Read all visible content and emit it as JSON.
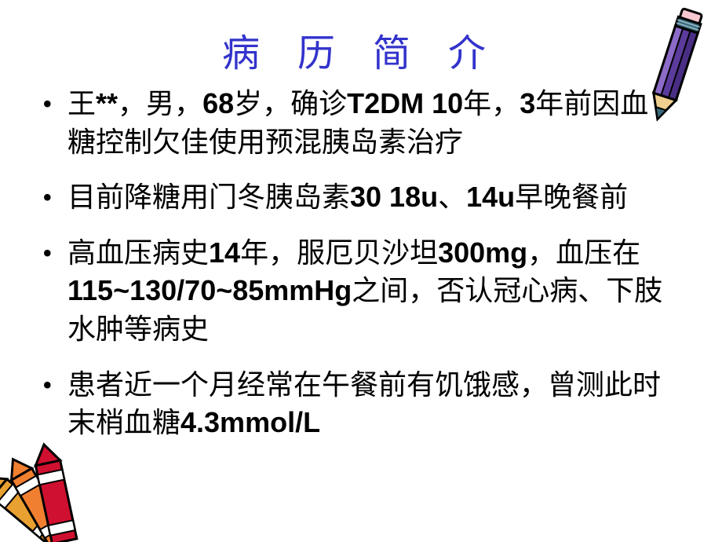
{
  "title": "病 历 简 介",
  "title_color": "#3333cc",
  "title_fontsize": 48,
  "body_fontsize": 36,
  "body_color": "#000000",
  "background_color": "#ffffff",
  "bullets": [
    {
      "segments": [
        {
          "text": "王",
          "bold": false
        },
        {
          "text": "**",
          "bold": true
        },
        {
          "text": "，男，",
          "bold": false
        },
        {
          "text": "68",
          "bold": true
        },
        {
          "text": "岁，确诊",
          "bold": false
        },
        {
          "text": "T2DM 10",
          "bold": true
        },
        {
          "text": "年，",
          "bold": false
        },
        {
          "text": "3",
          "bold": true
        },
        {
          "text": "年前因血糖控制欠佳使用预混胰岛素治疗",
          "bold": false
        }
      ]
    },
    {
      "segments": [
        {
          "text": "目前降糖用门冬胰岛素",
          "bold": false
        },
        {
          "text": "30 18u",
          "bold": true
        },
        {
          "text": "、",
          "bold": false
        },
        {
          "text": "14u",
          "bold": true
        },
        {
          "text": "早晚餐前",
          "bold": false
        }
      ]
    },
    {
      "segments": [
        {
          "text": "高血压病史",
          "bold": false
        },
        {
          "text": "14",
          "bold": true
        },
        {
          "text": "年，服厄贝沙坦",
          "bold": false
        },
        {
          "text": "300mg",
          "bold": true
        },
        {
          "text": "，血压在",
          "bold": false
        },
        {
          "text": "115~130/70~85mmHg",
          "bold": true
        },
        {
          "text": "之间，否认冠心病、下肢水肿等病史",
          "bold": false
        }
      ]
    },
    {
      "segments": [
        {
          "text": "患者近一个月经常在午餐前有饥饿感，曾测此时末梢血糖",
          "bold": false
        },
        {
          "text": "4.3mmol/L",
          "bold": true
        }
      ]
    }
  ],
  "decorations": {
    "pencil": {
      "body_color": "#5b3b9c",
      "body_color_light": "#8b6bc7",
      "tip_wood": "#f0d090",
      "tip_lead": "#3a6b7a",
      "band_color": "#3a6b7a",
      "eraser_color": "#f8c8d0",
      "outline": "#000000"
    },
    "crayons": {
      "red": "#d01030",
      "orange": "#f08030",
      "gold": "#e8a030",
      "outline": "#000000",
      "label_bg": "#ffffff"
    }
  }
}
